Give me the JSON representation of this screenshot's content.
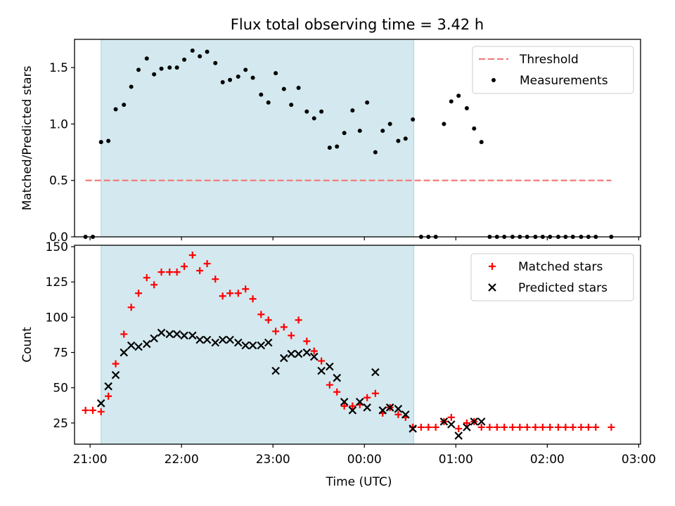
{
  "title": "Flux total observing time = 3.42 h",
  "chart_data": [
    {
      "type": "scatter",
      "ylabel": "Matched/Predicted stars",
      "xlim": [
        -0.17,
        6.02
      ],
      "ylim": [
        0,
        1.75
      ],
      "xticks": [
        {
          "v": 0,
          "label": ""
        },
        {
          "v": 1,
          "label": ""
        },
        {
          "v": 2,
          "label": ""
        },
        {
          "v": 3,
          "label": ""
        },
        {
          "v": 4,
          "label": ""
        },
        {
          "v": 5,
          "label": ""
        },
        {
          "v": 6,
          "label": ""
        }
      ],
      "yticks": [
        {
          "v": 0,
          "label": "0.0"
        },
        {
          "v": 0.5,
          "label": "0.5"
        },
        {
          "v": 1.0,
          "label": "1.0"
        },
        {
          "v": 1.5,
          "label": "1.5"
        }
      ],
      "legend_position": "top-right",
      "shaded_span": {
        "x0": 0.12,
        "x1": 3.54,
        "color": "#d3e9ef"
      },
      "series": [
        {
          "name": "Threshold",
          "style": "dashed-line",
          "color": "#f47b7b",
          "x": [
            -0.05,
            5.7
          ],
          "y": [
            0.5,
            0.5
          ]
        },
        {
          "name": "Measurements",
          "style": "dot",
          "color": "#000000",
          "x": [
            -0.05,
            0.03,
            0.12,
            0.2,
            0.28,
            0.37,
            0.45,
            0.53,
            0.62,
            0.7,
            0.78,
            0.87,
            0.95,
            1.03,
            1.12,
            1.2,
            1.28,
            1.37,
            1.45,
            1.53,
            1.62,
            1.7,
            1.78,
            1.87,
            1.95,
            2.03,
            2.12,
            2.2,
            2.28,
            2.37,
            2.45,
            2.53,
            2.62,
            2.7,
            2.78,
            2.87,
            2.95,
            3.03,
            3.12,
            3.2,
            3.28,
            3.37,
            3.45,
            3.53,
            3.62,
            3.7,
            3.78,
            3.87,
            3.95,
            4.03,
            4.12,
            4.2,
            4.28,
            4.37,
            4.45,
            4.53,
            4.62,
            4.7,
            4.78,
            4.87,
            4.95,
            5.03,
            5.12,
            5.2,
            5.28,
            5.37,
            5.45,
            5.53,
            5.7
          ],
          "y": [
            0,
            0,
            0.84,
            0.85,
            1.13,
            1.17,
            1.33,
            1.48,
            1.58,
            1.44,
            1.49,
            1.5,
            1.5,
            1.57,
            1.65,
            1.6,
            1.64,
            1.54,
            1.37,
            1.39,
            1.42,
            1.48,
            1.41,
            1.26,
            1.19,
            1.45,
            1.31,
            1.17,
            1.32,
            1.11,
            1.05,
            1.11,
            0.79,
            0.8,
            0.92,
            1.12,
            0.94,
            1.19,
            0.75,
            0.94,
            1.0,
            0.85,
            0.87,
            1.04,
            0,
            0,
            0,
            1.0,
            1.2,
            1.25,
            1.14,
            0.96,
            0.84,
            0,
            0,
            0,
            0,
            0,
            0,
            0,
            0,
            0,
            0,
            0,
            0,
            0,
            0,
            0,
            0
          ]
        }
      ]
    },
    {
      "type": "scatter",
      "xlabel": "Time (UTC)",
      "ylabel": "Count",
      "xlim": [
        -0.17,
        6.02
      ],
      "ylim": [
        10,
        151
      ],
      "xticks": [
        {
          "v": 0,
          "label": "21:00"
        },
        {
          "v": 1,
          "label": "22:00"
        },
        {
          "v": 2,
          "label": "23:00"
        },
        {
          "v": 3,
          "label": "00:00"
        },
        {
          "v": 4,
          "label": "01:00"
        },
        {
          "v": 5,
          "label": "02:00"
        },
        {
          "v": 6,
          "label": "03:00"
        }
      ],
      "yticks": [
        {
          "v": 25,
          "label": "25"
        },
        {
          "v": 50,
          "label": "50"
        },
        {
          "v": 75,
          "label": "75"
        },
        {
          "v": 100,
          "label": "100"
        },
        {
          "v": 125,
          "label": "125"
        },
        {
          "v": 150,
          "label": "150"
        }
      ],
      "legend_position": "top-right",
      "shaded_span": {
        "x0": 0.12,
        "x1": 3.54,
        "color": "#d3e9ef"
      },
      "series": [
        {
          "name": "Matched stars",
          "style": "plus",
          "color": "#ff0000",
          "x": [
            -0.05,
            0.03,
            0.12,
            0.2,
            0.28,
            0.37,
            0.45,
            0.53,
            0.62,
            0.7,
            0.78,
            0.87,
            0.95,
            1.03,
            1.12,
            1.2,
            1.28,
            1.37,
            1.45,
            1.53,
            1.62,
            1.7,
            1.78,
            1.87,
            1.95,
            2.03,
            2.12,
            2.2,
            2.28,
            2.37,
            2.45,
            2.53,
            2.62,
            2.7,
            2.78,
            2.87,
            2.95,
            3.03,
            3.12,
            3.2,
            3.28,
            3.37,
            3.45,
            3.53,
            3.62,
            3.7,
            3.78,
            3.87,
            3.95,
            4.03,
            4.12,
            4.2,
            4.28,
            4.37,
            4.45,
            4.53,
            4.62,
            4.7,
            4.78,
            4.87,
            4.95,
            5.03,
            5.12,
            5.2,
            5.28,
            5.37,
            5.45,
            5.53,
            5.7
          ],
          "y": [
            34,
            34,
            33,
            44,
            67,
            88,
            107,
            117,
            128,
            123,
            132,
            132,
            132,
            136,
            144,
            133,
            138,
            127,
            115,
            117,
            117,
            120,
            113,
            102,
            98,
            90,
            93,
            87,
            98,
            83,
            76,
            69,
            52,
            47,
            37,
            37,
            38,
            43,
            46,
            32,
            36,
            31,
            29,
            22,
            22,
            22,
            22,
            26,
            29,
            21,
            25,
            26,
            22,
            22,
            22,
            22,
            22,
            22,
            22,
            22,
            22,
            22,
            22,
            22,
            22,
            22,
            22,
            22,
            22
          ]
        },
        {
          "name": "Predicted stars",
          "style": "cross",
          "color": "#000000",
          "x": [
            0.12,
            0.2,
            0.28,
            0.37,
            0.45,
            0.53,
            0.62,
            0.7,
            0.78,
            0.87,
            0.95,
            1.03,
            1.12,
            1.2,
            1.28,
            1.37,
            1.45,
            1.53,
            1.62,
            1.7,
            1.78,
            1.87,
            1.95,
            2.03,
            2.12,
            2.2,
            2.28,
            2.37,
            2.45,
            2.53,
            2.62,
            2.7,
            2.78,
            2.87,
            2.95,
            3.03,
            3.12,
            3.2,
            3.28,
            3.37,
            3.45,
            3.53,
            3.87,
            3.95,
            4.03,
            4.12,
            4.2,
            4.28
          ],
          "y": [
            39,
            51,
            59,
            75,
            80,
            79,
            81,
            85,
            89,
            88,
            88,
            87,
            87,
            84,
            84,
            82,
            84,
            84,
            82,
            80,
            80,
            80,
            82,
            62,
            71,
            74,
            74,
            75,
            72,
            62,
            65,
            57,
            40,
            34,
            40,
            36,
            61,
            34,
            36,
            35,
            31,
            21,
            26,
            24,
            16,
            22,
            26,
            26
          ]
        }
      ]
    }
  ]
}
